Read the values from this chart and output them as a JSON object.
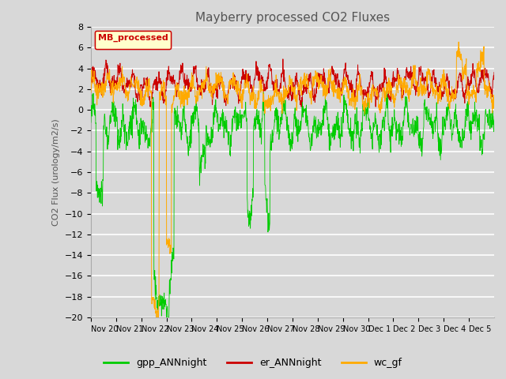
{
  "title": "Mayberry processed CO2 Fluxes",
  "ylabel": "CO2 Flux (urology/m2/s)",
  "bg_color": "#d8d8d8",
  "plot_bg_color": "#d8d8d8",
  "ylim": [
    -20,
    8
  ],
  "yticks": [
    8,
    6,
    4,
    2,
    0,
    -2,
    -4,
    -6,
    -8,
    -10,
    -12,
    -14,
    -16,
    -18,
    -20
  ],
  "x_labels": [
    "Nov 20",
    "Nov 21",
    "Nov 22",
    "Nov 23",
    "Nov 24",
    "Nov 25",
    "Nov 26",
    "Nov 27",
    "Nov 28",
    "Nov 29",
    "Nov 30",
    "Dec 1",
    "Dec 2",
    "Dec 3",
    "Dec 4",
    "Dec 5"
  ],
  "legend_label": "MB_processed",
  "line_colors": {
    "gpp": "#00cc00",
    "er": "#cc0000",
    "wc": "#ffaa00"
  },
  "n_days": 16,
  "n_points": 1536,
  "er_base": 2.5,
  "er_amp1": 0.8,
  "er_amp2": 0.4,
  "er_noise": 0.3,
  "gpp_base": -1.5,
  "gpp_amp": 1.2,
  "gpp_noise": 0.8,
  "wc_base": 1.8,
  "wc_amp1": 0.6,
  "wc_noise": 0.5
}
